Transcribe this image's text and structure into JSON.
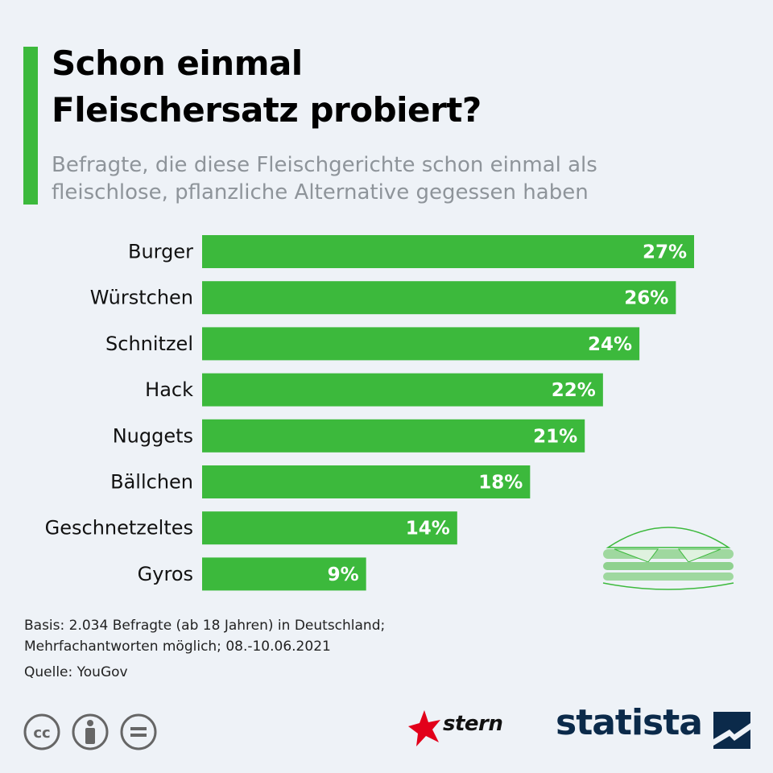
{
  "header": {
    "title_lines": [
      "Schon einmal",
      "Fleischersatz probiert?"
    ],
    "subtitle_lines": [
      "Befragte, die diese Fleischgerichte schon einmal als",
      "fleischlose, pflanzliche Alternative gegessen haben"
    ]
  },
  "chart_data": {
    "type": "bar",
    "orientation": "horizontal",
    "categories": [
      "Burger",
      "Würstchen",
      "Schnitzel",
      "Hack",
      "Nuggets",
      "Bällchen",
      "Geschnetzeltes",
      "Gyros"
    ],
    "values": [
      27,
      26,
      24,
      22,
      21,
      18,
      14,
      9
    ],
    "value_labels": [
      "27%",
      "26%",
      "24%",
      "22%",
      "21%",
      "18%",
      "14%",
      "9%"
    ],
    "unit": "%",
    "xlim": [
      0,
      27
    ],
    "bar_color": "#3cb93c"
  },
  "footer": {
    "basis_lines": [
      "Basis: 2.034 Befragte (ab 18 Jahren) in Deutschland;",
      "Mehrfachantworten möglich; 08.-10.06.2021"
    ],
    "source": "Quelle: YouGov"
  },
  "branding": {
    "stern": "stern",
    "statista": "statista",
    "license_icons": [
      "cc-icon",
      "attribution-icon",
      "no-derivatives-icon"
    ]
  },
  "colors": {
    "accent": "#3cb93c",
    "background": "#eef2f7",
    "subtitle": "#8e949a",
    "statista_navy": "#0b2a4a",
    "stern_red": "#e2001a"
  }
}
